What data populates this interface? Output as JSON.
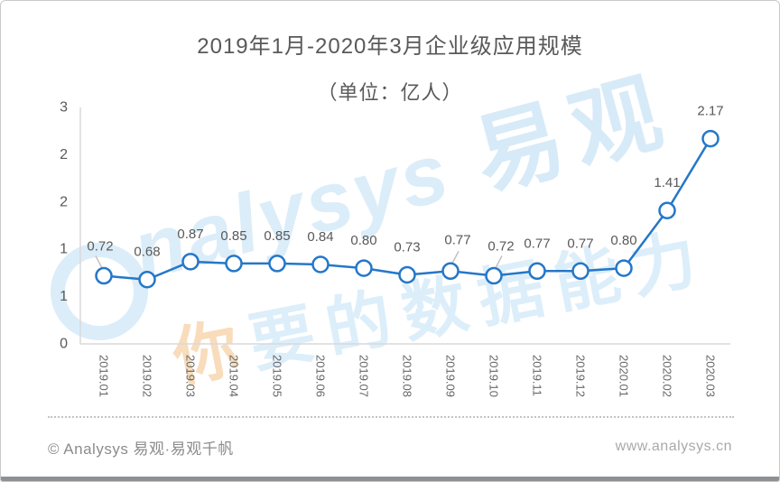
{
  "title": "2019年1月-2020年3月企业级应用规模",
  "subtitle": "（单位：亿人）",
  "watermark": {
    "logo_text": "nalysys",
    "brand": "易观",
    "slogan_prefix": "你",
    "slogan_rest": "要的数据能力"
  },
  "footer": {
    "left": "© Analysys 易观·易观千帆",
    "right": "www.analysys.cn"
  },
  "colors": {
    "line": "#2577C8",
    "marker_fill": "#FFFFFF",
    "axis": "#D9D9D9",
    "tick_label": "#595959",
    "category_label": "#666666",
    "data_label": "#595959",
    "leader": "#C4BEBE"
  },
  "chart_data": {
    "type": "line",
    "title": "2019年1月-2020年3月企业级应用规模",
    "subtitle": "（单位：亿人）",
    "categories": [
      "2019.01",
      "2019.02",
      "2019.03",
      "2019.04",
      "2019.05",
      "2019.06",
      "2019.07",
      "2019.08",
      "2019.09",
      "2019.10",
      "2019.11",
      "2019.12",
      "2020.01",
      "2020.02",
      "2020.03"
    ],
    "values": [
      0.72,
      0.68,
      0.87,
      0.85,
      0.85,
      0.84,
      0.8,
      0.73,
      0.77,
      0.72,
      0.77,
      0.77,
      0.8,
      1.41,
      2.17
    ],
    "value_labels": [
      "0.72",
      "0.68",
      "0.87",
      "0.85",
      "0.85",
      "0.84",
      "0.80",
      "0.73",
      "0.77",
      "0.72",
      "0.77",
      "0.77",
      "0.80",
      "1.41",
      "2.17"
    ],
    "xlabel": "",
    "ylabel": "",
    "ylim": [
      0,
      2.5
    ],
    "y_tick_values": [
      0,
      0.5,
      1,
      1.5,
      2,
      2.5
    ],
    "y_tick_labels": [
      "0",
      "1",
      "1",
      "2",
      "2",
      "3"
    ],
    "grid": false,
    "legend": false,
    "x_labels_rotated_90": true,
    "label_offsets": {
      "0": [
        -4,
        -28
      ],
      "8": [
        8,
        -30
      ],
      "9": [
        8,
        -28
      ]
    },
    "leader_indices": [
      0,
      8,
      9
    ]
  }
}
